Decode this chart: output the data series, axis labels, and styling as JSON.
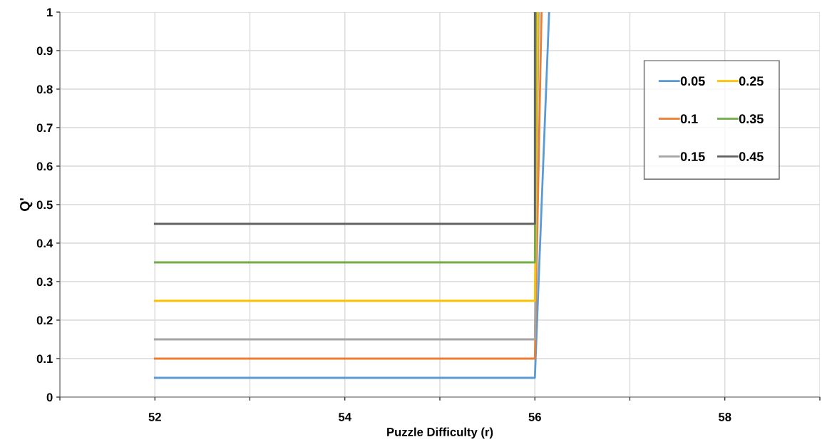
{
  "chart_data": {
    "type": "line",
    "xlabel": "Puzzle Difficulty (r)",
    "ylabel": "Q'",
    "xlim": [
      51,
      59
    ],
    "ylim": [
      0,
      1
    ],
    "xticks": [
      {
        "value": 51,
        "label": null
      },
      52,
      {
        "value": 53,
        "label": null
      },
      54,
      {
        "value": 55,
        "label": null
      },
      56,
      {
        "value": 57,
        "label": null
      },
      58,
      {
        "value": 59,
        "label": null
      }
    ],
    "yticks": [
      0,
      0.1,
      0.2,
      0.3,
      0.4,
      0.5,
      0.6,
      0.7,
      0.8,
      0.9,
      1
    ],
    "grid": true,
    "legend": "right",
    "marker": "none",
    "line_style": "solid",
    "series": [
      {
        "name": "0.05",
        "color": "#5b9bd5",
        "x": [
          52,
          56,
          56.15
        ],
        "values": [
          0.05,
          0.05,
          1
        ]
      },
      {
        "name": "0.1",
        "color": "#ed7d31",
        "x": [
          52,
          56,
          56.07
        ],
        "values": [
          0.1,
          0.1,
          1
        ]
      },
      {
        "name": "0.15",
        "color": "#a5a5a5",
        "x": [
          52,
          56,
          56.04
        ],
        "values": [
          0.15,
          0.15,
          1
        ]
      },
      {
        "name": "0.25",
        "color": "#ffc000",
        "x": [
          52,
          56,
          56.03
        ],
        "values": [
          0.25,
          0.25,
          1
        ]
      },
      {
        "name": "0.35",
        "color": "#70ad47",
        "x": [
          52,
          56,
          56.01
        ],
        "values": [
          0.35,
          0.35,
          1
        ]
      },
      {
        "name": "0.45",
        "color": "#636363",
        "x": [
          52,
          56,
          56.0
        ],
        "values": [
          0.45,
          0.45,
          1
        ]
      }
    ]
  }
}
